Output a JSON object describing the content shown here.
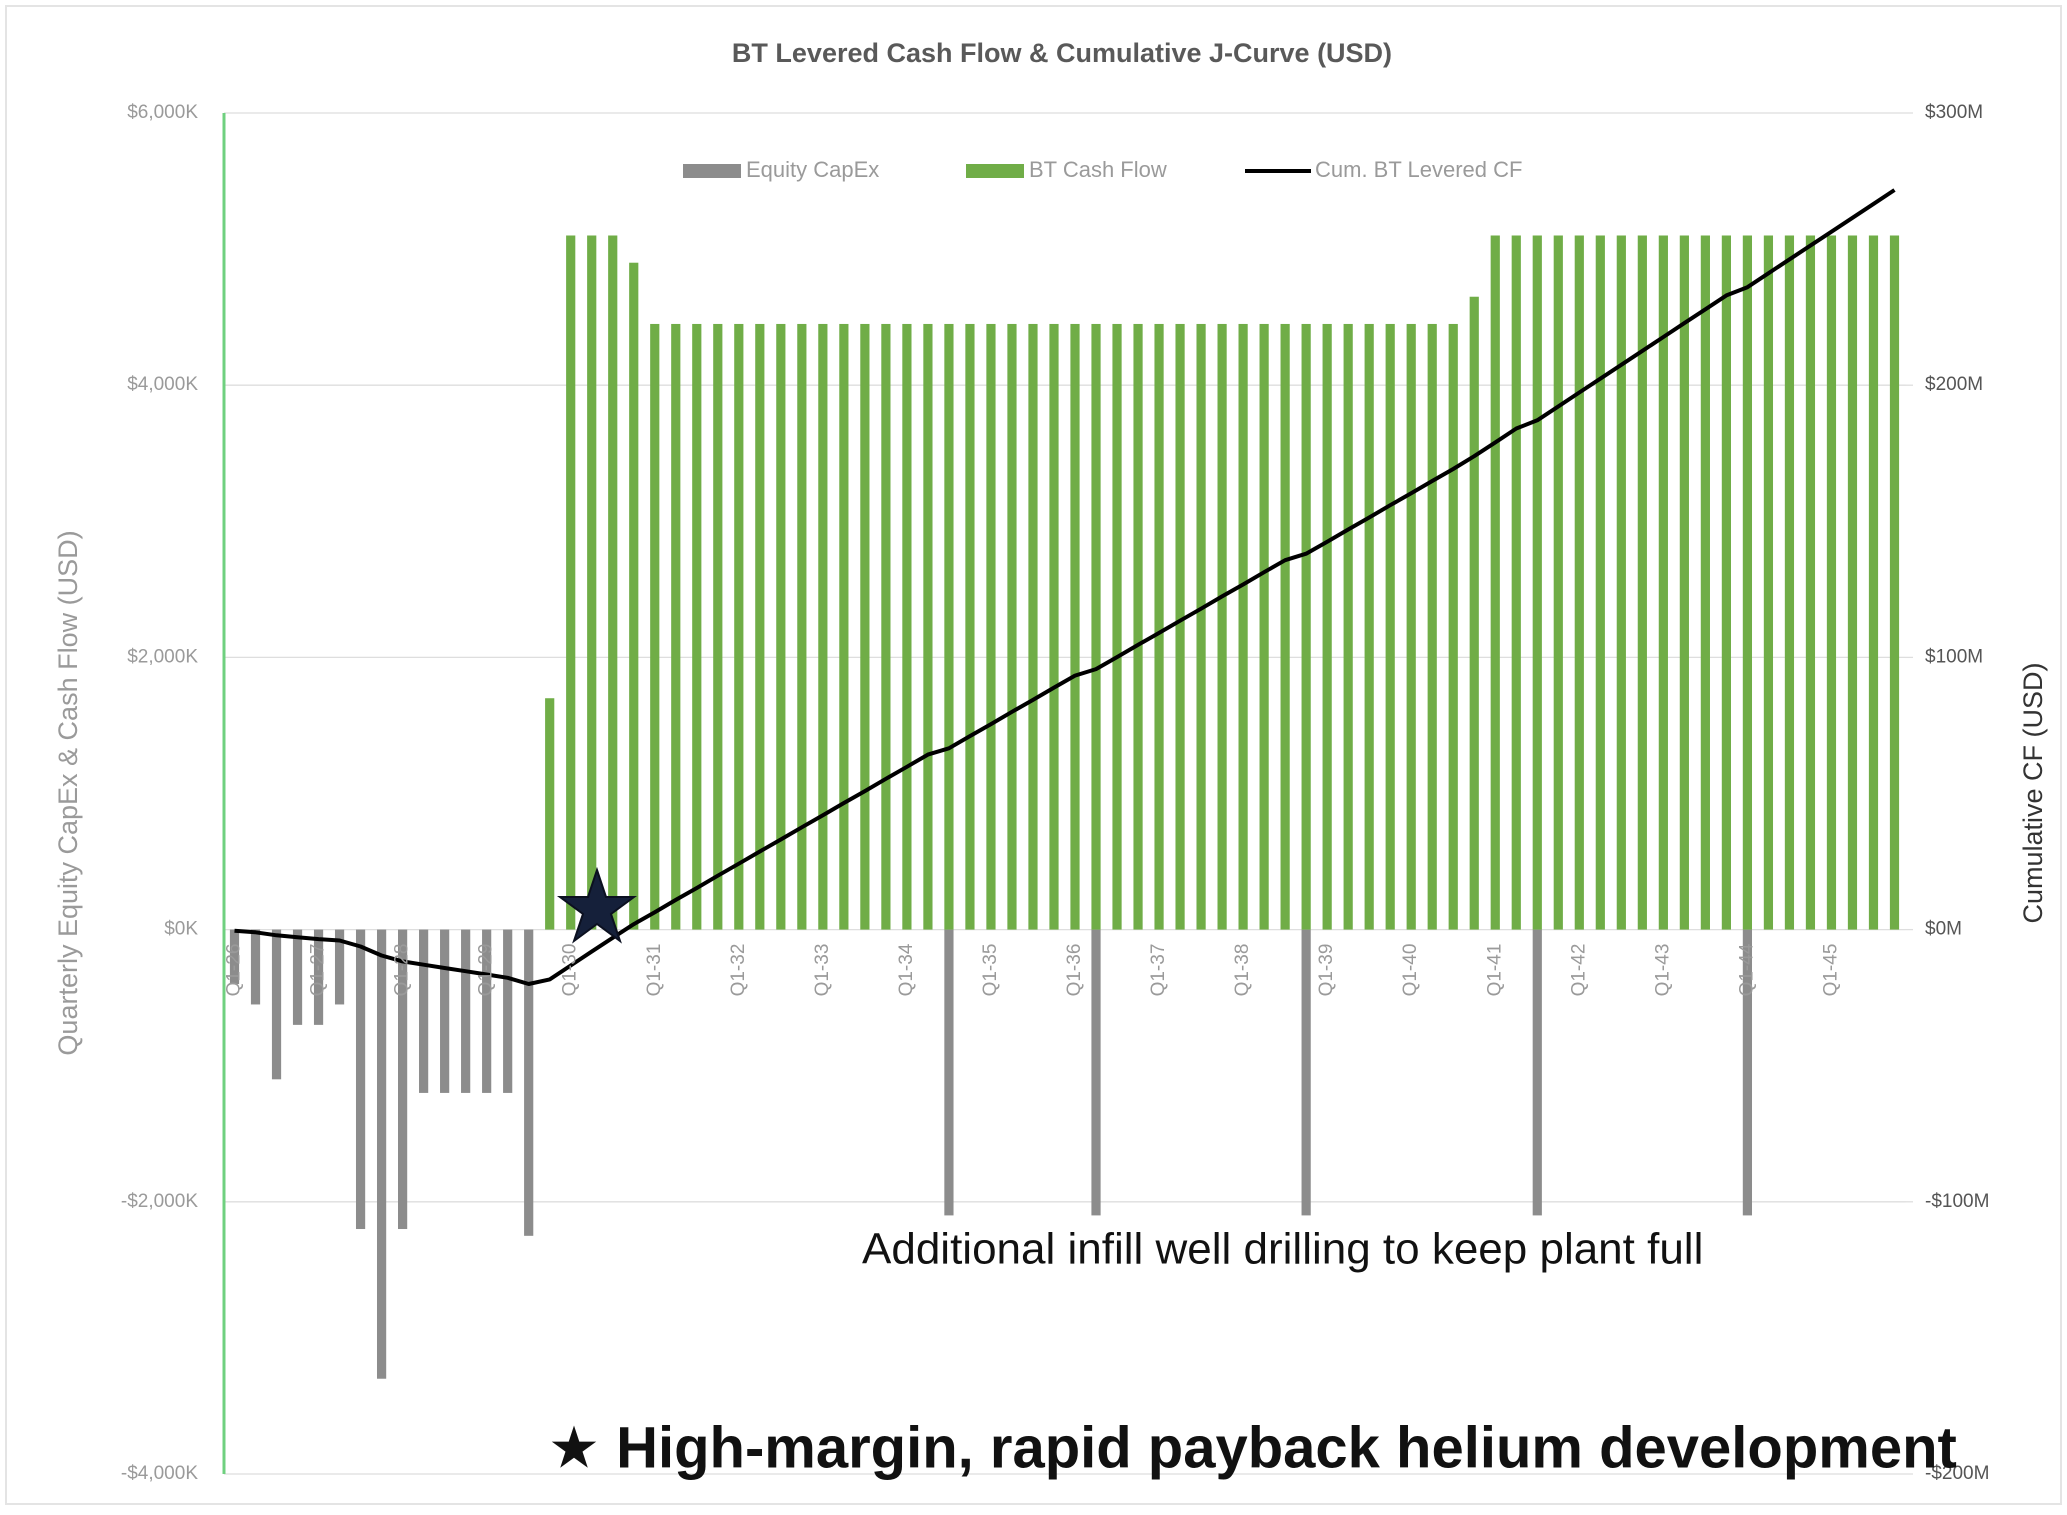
{
  "chart_data": {
    "type": "bar",
    "title": "BT Levered Cash Flow & Cumulative J-Curve (USD)",
    "y_label": "Quarterly Equity CapEx & Cash Flow (USD)",
    "y2_label": "Cumulative CF (USD)",
    "annotations": [
      "Additional infill well drilling to keep plant full",
      "★ High-margin, rapid payback helium development"
    ],
    "legend": "top",
    "grid": true,
    "categories": [
      "Q1-26",
      null,
      null,
      null,
      "Q1-27",
      null,
      null,
      null,
      "Q1-28",
      null,
      null,
      null,
      "Q1-29",
      null,
      null,
      null,
      "Q1-30",
      null,
      null,
      null,
      "Q1-31",
      null,
      null,
      null,
      "Q1-32",
      null,
      null,
      null,
      "Q1-33",
      null,
      null,
      null,
      "Q1-34",
      null,
      null,
      null,
      "Q1-35",
      null,
      null,
      null,
      "Q1-36",
      null,
      null,
      null,
      "Q1-37",
      null,
      null,
      null,
      "Q1-38",
      null,
      null,
      null,
      "Q1-39",
      null,
      null,
      null,
      "Q1-40",
      null,
      null,
      null,
      "Q1-41",
      null,
      null,
      null,
      "Q1-42",
      null,
      null,
      null,
      "Q1-43",
      null,
      null,
      null,
      "Q1-44",
      null,
      null,
      null,
      "Q1-45",
      null,
      null,
      null
    ],
    "ylim": [
      -4000,
      6000
    ],
    "yticks": [
      {
        "value": -4000,
        "label": "-$4,000K"
      },
      {
        "value": -2000,
        "label": "-$2,000K"
      },
      {
        "value": 0,
        "label": "$0K"
      },
      {
        "value": 2000,
        "label": "$2,000K"
      },
      {
        "value": 4000,
        "label": "$4,000K"
      },
      {
        "value": 6000,
        "label": "$6,000K"
      }
    ],
    "y2lim": [
      -200,
      300
    ],
    "y2ticks": [
      {
        "value": -200,
        "label": "-$200M"
      },
      {
        "value": -100,
        "label": "-$100M"
      },
      {
        "value": 0,
        "label": "$0M"
      },
      {
        "value": 100,
        "label": "$100M"
      },
      {
        "value": 200,
        "label": "$200M"
      },
      {
        "value": 300,
        "label": "$300M"
      }
    ],
    "series": [
      {
        "name": "Equity CapEx",
        "color": "#8c8c8c",
        "type": "bar",
        "values": [
          -400,
          -550,
          -1100,
          -700,
          -700,
          -550,
          -2200,
          -3300,
          -2200,
          -1200,
          -1200,
          -1200,
          -1200,
          -1200,
          -2250,
          null,
          null,
          null,
          null,
          null,
          null,
          null,
          null,
          null,
          null,
          null,
          null,
          null,
          null,
          null,
          null,
          null,
          null,
          null,
          -2100,
          null,
          null,
          null,
          null,
          null,
          null,
          -2100,
          null,
          null,
          null,
          null,
          null,
          null,
          null,
          null,
          null,
          -2100,
          null,
          null,
          null,
          null,
          null,
          null,
          null,
          null,
          null,
          null,
          -2100,
          null,
          null,
          null,
          null,
          null,
          null,
          null,
          null,
          null,
          -2100,
          null,
          null,
          null,
          null,
          null,
          null,
          null
        ]
      },
      {
        "name": "BT Cash Flow",
        "color": "#70ad47",
        "type": "bar",
        "values": [
          null,
          null,
          null,
          null,
          null,
          null,
          null,
          null,
          null,
          null,
          null,
          null,
          null,
          null,
          null,
          1700,
          5100,
          5100,
          5100,
          4900,
          4450,
          4450,
          4450,
          4450,
          4450,
          4450,
          4450,
          4450,
          4450,
          4450,
          4450,
          4450,
          4450,
          4450,
          4450,
          4450,
          4450,
          4450,
          4450,
          4450,
          4450,
          4450,
          4450,
          4450,
          4450,
          4450,
          4450,
          4450,
          4450,
          4450,
          4450,
          4450,
          4450,
          4450,
          4450,
          4450,
          4450,
          4450,
          4450,
          4650,
          5100,
          5100,
          5100,
          5100,
          5100,
          5100,
          5100,
          5100,
          5100,
          5100,
          5100,
          5100,
          5100,
          5100,
          5100,
          5100,
          5100,
          5100,
          5100,
          5100
        ]
      },
      {
        "name": "Cum. BT Levered CF",
        "color": "#000000",
        "type": "line",
        "axis": "y2",
        "values": [
          -0.4,
          -1.0,
          -2.1,
          -2.8,
          -3.5,
          -4.0,
          -6.2,
          -9.5,
          -11.7,
          -12.9,
          -14.1,
          -15.3,
          -16.5,
          -17.7,
          -20.0,
          -18.3,
          -13.2,
          -8.1,
          -3.0,
          2.0,
          6.4,
          10.9,
          15.3,
          19.8,
          24.2,
          28.7,
          33.1,
          37.6,
          42.0,
          46.5,
          50.9,
          55.4,
          59.8,
          64.3,
          66.6,
          71.1,
          75.5,
          80.0,
          84.4,
          88.9,
          93.3,
          95.7,
          100.1,
          104.6,
          109.0,
          113.5,
          117.9,
          122.4,
          126.8,
          131.3,
          135.7,
          138.1,
          142.5,
          147.0,
          151.4,
          155.9,
          160.3,
          164.8,
          169.2,
          173.9,
          179.0,
          184.1,
          187.1,
          192.2,
          197.3,
          202.4,
          207.5,
          212.6,
          217.7,
          222.8,
          227.9,
          233.0,
          236.0,
          241.1,
          246.2,
          251.3,
          256.4,
          261.5,
          266.6,
          271.7
        ]
      }
    ]
  }
}
